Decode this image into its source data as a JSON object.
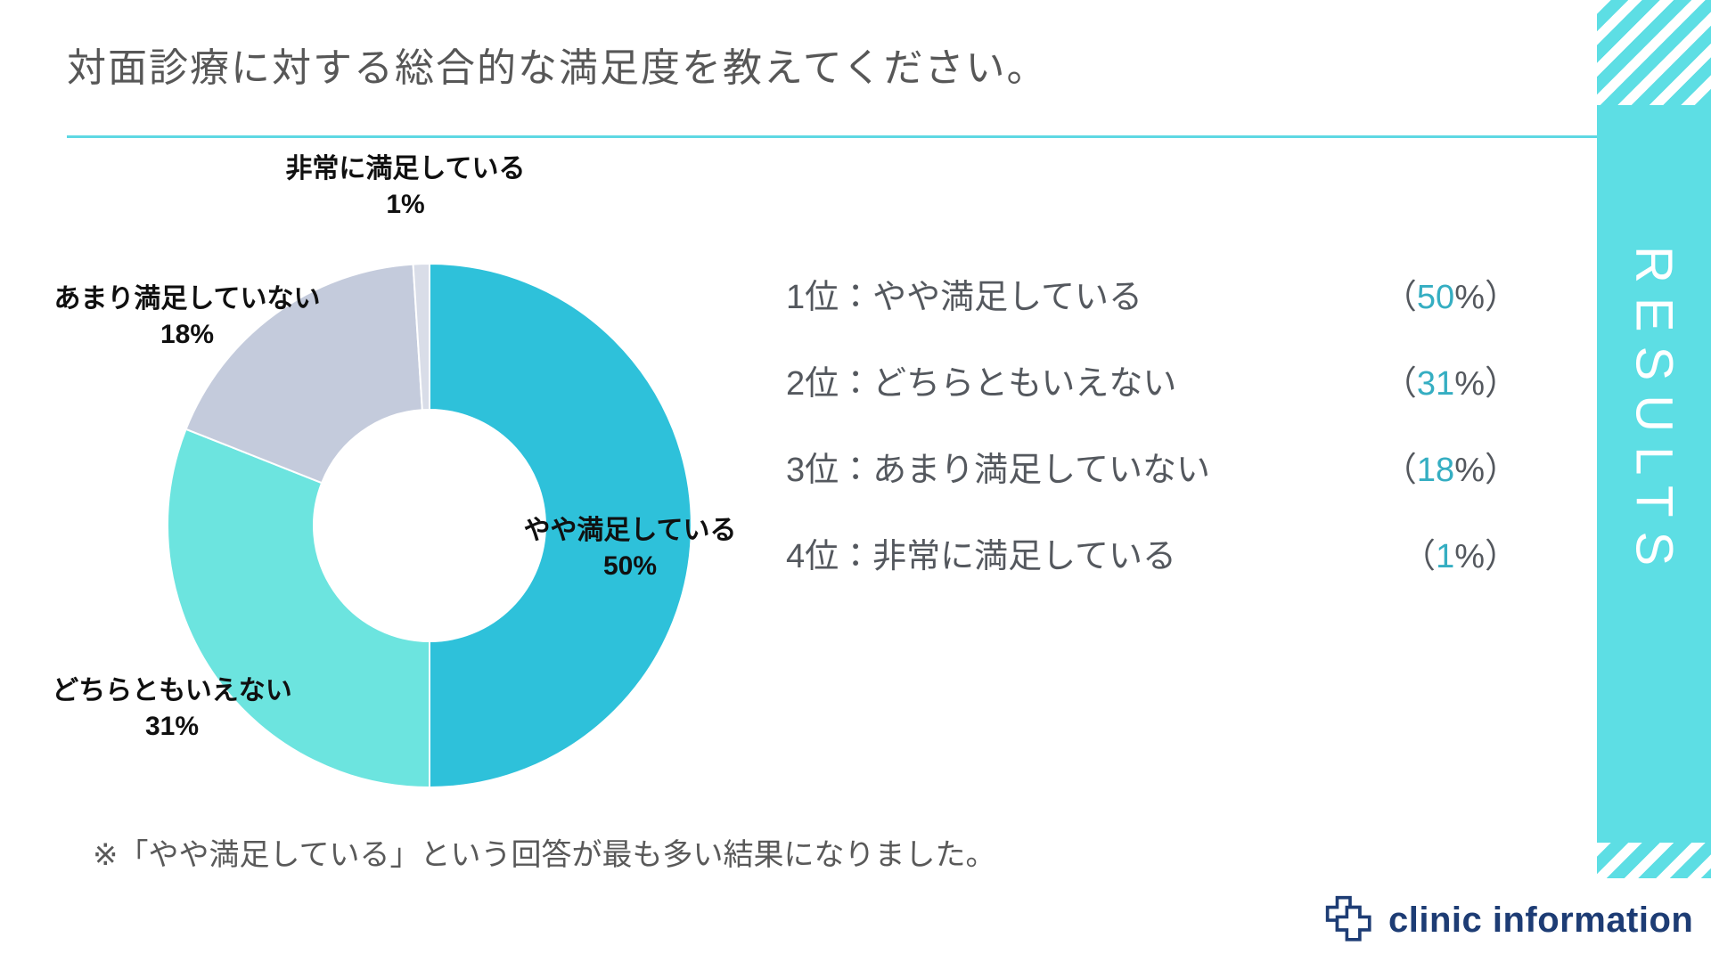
{
  "page": {
    "title": "対面診療に対する総合的な満足度を教えてください。",
    "note": "※「やや満足している」という回答が最も多い結果になりました。",
    "sidebar_label": "RESULTS",
    "logo_text": "clinic information"
  },
  "colors": {
    "accent_teal": "#5DDEE4",
    "divider_teal": "#5ED8E3",
    "rank_value_teal": "#35AEC2",
    "logo_navy": "#1D3C74",
    "title_gray": "#575757"
  },
  "chart_data": {
    "type": "pie",
    "subtype": "donut",
    "title": "対面診療に対する総合的な満足度を教えてください。",
    "unit": "%",
    "categories": [
      "やや満足している",
      "どちらともいえない",
      "あまり満足していない",
      "非常に満足している"
    ],
    "values": [
      50,
      31,
      18,
      1
    ],
    "colors": [
      "#2EC1DA",
      "#6CE4DF",
      "#C4CBDC",
      "#D9DDE8"
    ],
    "start_angle_deg": -90,
    "direction": "clockwise",
    "legend_position": "none",
    "labels": [
      {
        "text": "やや満足している",
        "pct": "50%"
      },
      {
        "text": "どちらともいえない",
        "pct": "31%"
      },
      {
        "text": "あまり満足していない",
        "pct": "18%"
      },
      {
        "text": "非常に満足している",
        "pct": "1%"
      }
    ]
  },
  "ranking": [
    {
      "label": "1位：やや満足している",
      "open": "（",
      "value": "50",
      "close": "%）"
    },
    {
      "label": "2位：どちらともいえない",
      "open": "（",
      "value": "31",
      "close": "%）"
    },
    {
      "label": "3位：あまり満足していない",
      "open": "（",
      "value": "18",
      "close": "%）"
    },
    {
      "label": "4位：非常に満足している",
      "open": "（",
      "value": "1",
      "close": "%）"
    }
  ]
}
